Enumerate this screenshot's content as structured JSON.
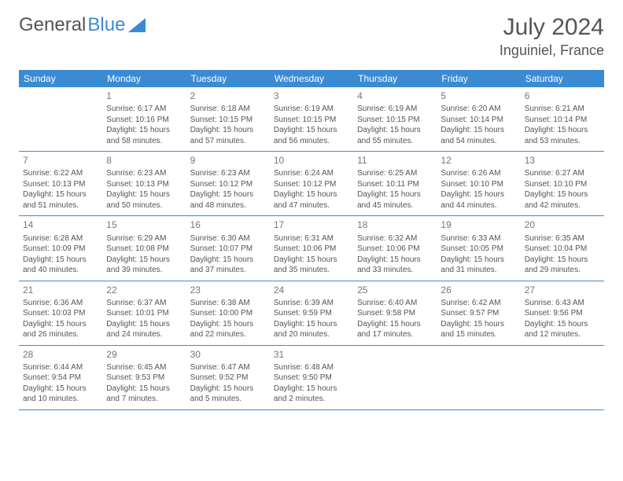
{
  "logo": {
    "text1": "General",
    "text2": "Blue"
  },
  "title": "July 2024",
  "location": "Inguiniel, France",
  "dayHeaders": [
    "Sunday",
    "Monday",
    "Tuesday",
    "Wednesday",
    "Thursday",
    "Friday",
    "Saturday"
  ],
  "colors": {
    "accent": "#3b8bd4",
    "headerText": "#ffffff",
    "bodyText": "#555555",
    "background": "#ffffff"
  },
  "typography": {
    "titleSize": 30,
    "locationSize": 18,
    "headerSize": 12,
    "daynumSize": 12,
    "cellSize": 10,
    "fontFamily": "Arial"
  },
  "layout": {
    "columns": 7,
    "rows": 5,
    "firstDayOffset": 1
  },
  "weeks": [
    [
      null,
      {
        "day": "1",
        "sunrise": "Sunrise: 6:17 AM",
        "sunset": "Sunset: 10:16 PM",
        "daylight": "Daylight: 15 hours and 58 minutes."
      },
      {
        "day": "2",
        "sunrise": "Sunrise: 6:18 AM",
        "sunset": "Sunset: 10:15 PM",
        "daylight": "Daylight: 15 hours and 57 minutes."
      },
      {
        "day": "3",
        "sunrise": "Sunrise: 6:19 AM",
        "sunset": "Sunset: 10:15 PM",
        "daylight": "Daylight: 15 hours and 56 minutes."
      },
      {
        "day": "4",
        "sunrise": "Sunrise: 6:19 AM",
        "sunset": "Sunset: 10:15 PM",
        "daylight": "Daylight: 15 hours and 55 minutes."
      },
      {
        "day": "5",
        "sunrise": "Sunrise: 6:20 AM",
        "sunset": "Sunset: 10:14 PM",
        "daylight": "Daylight: 15 hours and 54 minutes."
      },
      {
        "day": "6",
        "sunrise": "Sunrise: 6:21 AM",
        "sunset": "Sunset: 10:14 PM",
        "daylight": "Daylight: 15 hours and 53 minutes."
      }
    ],
    [
      {
        "day": "7",
        "sunrise": "Sunrise: 6:22 AM",
        "sunset": "Sunset: 10:13 PM",
        "daylight": "Daylight: 15 hours and 51 minutes."
      },
      {
        "day": "8",
        "sunrise": "Sunrise: 6:23 AM",
        "sunset": "Sunset: 10:13 PM",
        "daylight": "Daylight: 15 hours and 50 minutes."
      },
      {
        "day": "9",
        "sunrise": "Sunrise: 6:23 AM",
        "sunset": "Sunset: 10:12 PM",
        "daylight": "Daylight: 15 hours and 48 minutes."
      },
      {
        "day": "10",
        "sunrise": "Sunrise: 6:24 AM",
        "sunset": "Sunset: 10:12 PM",
        "daylight": "Daylight: 15 hours and 47 minutes."
      },
      {
        "day": "11",
        "sunrise": "Sunrise: 6:25 AM",
        "sunset": "Sunset: 10:11 PM",
        "daylight": "Daylight: 15 hours and 45 minutes."
      },
      {
        "day": "12",
        "sunrise": "Sunrise: 6:26 AM",
        "sunset": "Sunset: 10:10 PM",
        "daylight": "Daylight: 15 hours and 44 minutes."
      },
      {
        "day": "13",
        "sunrise": "Sunrise: 6:27 AM",
        "sunset": "Sunset: 10:10 PM",
        "daylight": "Daylight: 15 hours and 42 minutes."
      }
    ],
    [
      {
        "day": "14",
        "sunrise": "Sunrise: 6:28 AM",
        "sunset": "Sunset: 10:09 PM",
        "daylight": "Daylight: 15 hours and 40 minutes."
      },
      {
        "day": "15",
        "sunrise": "Sunrise: 6:29 AM",
        "sunset": "Sunset: 10:08 PM",
        "daylight": "Daylight: 15 hours and 39 minutes."
      },
      {
        "day": "16",
        "sunrise": "Sunrise: 6:30 AM",
        "sunset": "Sunset: 10:07 PM",
        "daylight": "Daylight: 15 hours and 37 minutes."
      },
      {
        "day": "17",
        "sunrise": "Sunrise: 6:31 AM",
        "sunset": "Sunset: 10:06 PM",
        "daylight": "Daylight: 15 hours and 35 minutes."
      },
      {
        "day": "18",
        "sunrise": "Sunrise: 6:32 AM",
        "sunset": "Sunset: 10:06 PM",
        "daylight": "Daylight: 15 hours and 33 minutes."
      },
      {
        "day": "19",
        "sunrise": "Sunrise: 6:33 AM",
        "sunset": "Sunset: 10:05 PM",
        "daylight": "Daylight: 15 hours and 31 minutes."
      },
      {
        "day": "20",
        "sunrise": "Sunrise: 6:35 AM",
        "sunset": "Sunset: 10:04 PM",
        "daylight": "Daylight: 15 hours and 29 minutes."
      }
    ],
    [
      {
        "day": "21",
        "sunrise": "Sunrise: 6:36 AM",
        "sunset": "Sunset: 10:03 PM",
        "daylight": "Daylight: 15 hours and 26 minutes."
      },
      {
        "day": "22",
        "sunrise": "Sunrise: 6:37 AM",
        "sunset": "Sunset: 10:01 PM",
        "daylight": "Daylight: 15 hours and 24 minutes."
      },
      {
        "day": "23",
        "sunrise": "Sunrise: 6:38 AM",
        "sunset": "Sunset: 10:00 PM",
        "daylight": "Daylight: 15 hours and 22 minutes."
      },
      {
        "day": "24",
        "sunrise": "Sunrise: 6:39 AM",
        "sunset": "Sunset: 9:59 PM",
        "daylight": "Daylight: 15 hours and 20 minutes."
      },
      {
        "day": "25",
        "sunrise": "Sunrise: 6:40 AM",
        "sunset": "Sunset: 9:58 PM",
        "daylight": "Daylight: 15 hours and 17 minutes."
      },
      {
        "day": "26",
        "sunrise": "Sunrise: 6:42 AM",
        "sunset": "Sunset: 9:57 PM",
        "daylight": "Daylight: 15 hours and 15 minutes."
      },
      {
        "day": "27",
        "sunrise": "Sunrise: 6:43 AM",
        "sunset": "Sunset: 9:56 PM",
        "daylight": "Daylight: 15 hours and 12 minutes."
      }
    ],
    [
      {
        "day": "28",
        "sunrise": "Sunrise: 6:44 AM",
        "sunset": "Sunset: 9:54 PM",
        "daylight": "Daylight: 15 hours and 10 minutes."
      },
      {
        "day": "29",
        "sunrise": "Sunrise: 6:45 AM",
        "sunset": "Sunset: 9:53 PM",
        "daylight": "Daylight: 15 hours and 7 minutes."
      },
      {
        "day": "30",
        "sunrise": "Sunrise: 6:47 AM",
        "sunset": "Sunset: 9:52 PM",
        "daylight": "Daylight: 15 hours and 5 minutes."
      },
      {
        "day": "31",
        "sunrise": "Sunrise: 6:48 AM",
        "sunset": "Sunset: 9:50 PM",
        "daylight": "Daylight: 15 hours and 2 minutes."
      },
      null,
      null,
      null
    ]
  ]
}
